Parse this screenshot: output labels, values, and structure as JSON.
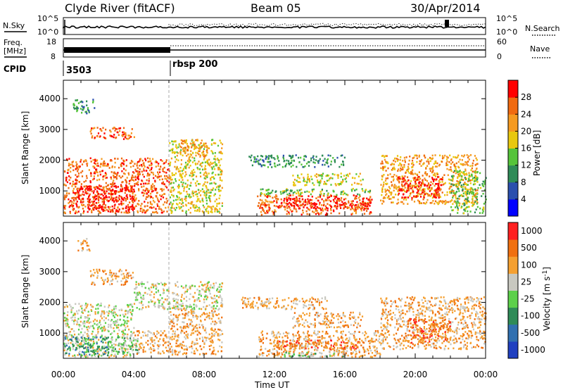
{
  "header": {
    "station": "Clyde River (fitACF)",
    "beam": "Beam 05",
    "date": "30/Apr/2014"
  },
  "noise_panel": {
    "left_label": "N.Sky",
    "right_label": "N.Search",
    "left_ticks": [
      "10^5",
      "10^0"
    ],
    "right_ticks": [
      "10^5",
      "10^0"
    ]
  },
  "freq_panel": {
    "left_label_1": "Freq.",
    "left_label_2": "[MHz]",
    "left_ticks": [
      "18",
      "8"
    ],
    "right_label": "Nave",
    "right_ticks": [
      "60",
      "0"
    ]
  },
  "cpid_panel": {
    "label": "CPID",
    "segments": [
      {
        "start_hr": 0,
        "end_hr": 6.0,
        "label": "3503"
      },
      {
        "start_hr": 6.0,
        "end_hr": 24,
        "label": "rbsp 200"
      }
    ]
  },
  "chart_data": [
    {
      "type": "heatmap",
      "name": "power",
      "xlabel": "Time UT",
      "ylabel": "Slant Range [km]",
      "x_ticks": [
        "00:00",
        "04:00",
        "08:00",
        "12:00",
        "16:00",
        "20:00",
        "00:00"
      ],
      "xlim_hours": [
        0,
        24
      ],
      "y_ticks": [
        1000,
        2000,
        3000,
        4000
      ],
      "ylim_km": [
        180,
        4600
      ],
      "colorbar_label": "Power [dB]",
      "colorbar_ticks": [
        4,
        8,
        12,
        16,
        20,
        24,
        28
      ],
      "colorbar_range": [
        0,
        32
      ],
      "colors": [
        "#0000ff",
        "#2a4fae",
        "#2e8b57",
        "#55c43a",
        "#e8c80f",
        "#f59a20",
        "#f06a10",
        "#ff0000"
      ],
      "regions": [
        {
          "t0": 0.0,
          "t1": 6.0,
          "r0": 300,
          "r1": 2100,
          "level": 6
        },
        {
          "t0": 0.5,
          "t1": 4.0,
          "r0": 350,
          "r1": 1200,
          "level": 7
        },
        {
          "t0": 1.5,
          "t1": 4.0,
          "r0": 2700,
          "r1": 3100,
          "level": 6
        },
        {
          "t0": 0.5,
          "t1": 1.8,
          "r0": 3550,
          "r1": 4000,
          "level": 2
        },
        {
          "t0": 6.0,
          "t1": 9.0,
          "r0": 300,
          "r1": 2700,
          "level": 4
        },
        {
          "t0": 6.6,
          "t1": 8.2,
          "r0": 2150,
          "r1": 2700,
          "level": 5
        },
        {
          "t0": 11.0,
          "t1": 17.5,
          "r0": 250,
          "r1": 900,
          "level": 6
        },
        {
          "t0": 12.0,
          "t1": 17.5,
          "r0": 450,
          "r1": 800,
          "level": 7
        },
        {
          "t0": 11.0,
          "t1": 17.5,
          "r0": 900,
          "r1": 1100,
          "level": 3
        },
        {
          "t0": 13.0,
          "t1": 17.0,
          "r0": 1200,
          "r1": 1600,
          "level": 4
        },
        {
          "t0": 10.5,
          "t1": 16.0,
          "r0": 1800,
          "r1": 2200,
          "level": 2
        },
        {
          "t0": 18.0,
          "t1": 23.5,
          "r0": 600,
          "r1": 2200,
          "level": 5
        },
        {
          "t0": 19.0,
          "t1": 21.5,
          "r0": 800,
          "r1": 1500,
          "level": 7
        },
        {
          "t0": 22.0,
          "t1": 24.0,
          "r0": 300,
          "r1": 1700,
          "level": 3
        }
      ]
    },
    {
      "type": "heatmap",
      "name": "velocity",
      "xlabel": "Time UT",
      "ylabel": "Slant Range [km]",
      "x_ticks": [
        "00:00",
        "04:00",
        "08:00",
        "12:00",
        "16:00",
        "20:00",
        "00:00"
      ],
      "xlim_hours": [
        0,
        24
      ],
      "y_ticks": [
        1000,
        2000,
        3000,
        4000
      ],
      "ylim_km": [
        180,
        4600
      ],
      "colorbar_label": "Velocity [m s^-1]",
      "colorbar_ticks": [
        "1000",
        "500",
        "100",
        "25",
        "-25",
        "-100",
        "-500",
        "-1000"
      ],
      "colors": [
        "#2040c0",
        "#3070b0",
        "#2e8b57",
        "#5cd04a",
        "#c8c8c0",
        "#f5a030",
        "#f07010",
        "#ff2020"
      ],
      "regions": [
        {
          "t0": 0.0,
          "t1": 4.0,
          "r0": 250,
          "r1": 2000,
          "level": 4
        },
        {
          "t0": 0.0,
          "t1": 2.5,
          "r0": 300,
          "r1": 900,
          "level": 2
        },
        {
          "t0": 2.5,
          "t1": 4.2,
          "r0": 350,
          "r1": 900,
          "level": 3
        },
        {
          "t0": 4.0,
          "t1": 6.0,
          "r0": 350,
          "r1": 1100,
          "level": 5
        },
        {
          "t0": 1.5,
          "t1": 4.0,
          "r0": 2600,
          "r1": 3100,
          "level": 5
        },
        {
          "t0": 0.8,
          "t1": 1.5,
          "r0": 3700,
          "r1": 4100,
          "level": 5
        },
        {
          "t0": 4.0,
          "t1": 9.0,
          "r0": 1800,
          "r1": 2700,
          "level": 4
        },
        {
          "t0": 6.0,
          "t1": 9.0,
          "r0": 300,
          "r1": 1800,
          "level": 5
        },
        {
          "t0": 11.0,
          "t1": 18.0,
          "r0": 250,
          "r1": 1100,
          "level": 5
        },
        {
          "t0": 12.0,
          "t1": 17.0,
          "r0": 500,
          "r1": 800,
          "level": 6
        },
        {
          "t0": 12.5,
          "t1": 16.0,
          "r0": 250,
          "r1": 400,
          "level": 3
        },
        {
          "t0": 13.0,
          "t1": 17.0,
          "r0": 1200,
          "r1": 1700,
          "level": 5
        },
        {
          "t0": 10.0,
          "t1": 15.0,
          "r0": 1800,
          "r1": 2200,
          "level": 5
        },
        {
          "t0": 18.0,
          "t1": 24.0,
          "r0": 500,
          "r1": 2200,
          "level": 5
        },
        {
          "t0": 19.5,
          "t1": 22.0,
          "r0": 700,
          "r1": 1500,
          "level": 6
        }
      ]
    }
  ]
}
